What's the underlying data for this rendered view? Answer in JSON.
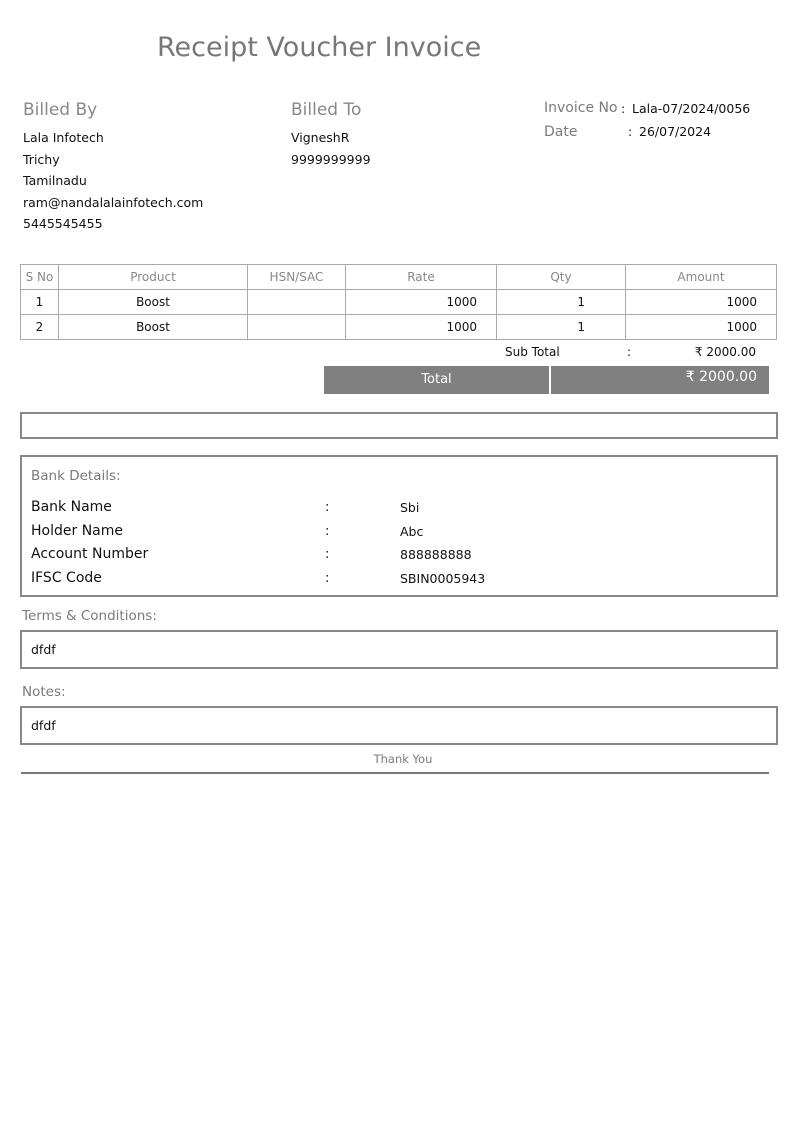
{
  "title": "Receipt Voucher Invoice",
  "billed_by": {
    "heading": "Billed By",
    "lines": [
      "Lala Infotech",
      "Trichy",
      "Tamilnadu",
      "ram@nandalalainfotech.com",
      "5445545455"
    ]
  },
  "billed_to": {
    "heading": "Billed To",
    "lines": [
      "VigneshR",
      "9999999999"
    ]
  },
  "invoice": {
    "no_label": "Invoice No",
    "no_value": "Lala-07/2024/0056",
    "date_label": "Date",
    "date_value": "26/07/2024",
    "sep": ":"
  },
  "table": {
    "headers": [
      "S No",
      "Product",
      "HSN/SAC",
      "Rate",
      "Qty",
      "Amount"
    ],
    "rows": [
      [
        "1",
        "Boost",
        "",
        "1000",
        "1",
        "1000"
      ],
      [
        "2",
        "Boost",
        "",
        "1000",
        "1",
        "1000"
      ]
    ]
  },
  "subtotal": {
    "label": "Sub Total",
    "sep": ":",
    "value": "₹ 2000.00"
  },
  "total": {
    "label": "Total",
    "value": "₹ 2000.00"
  },
  "bank": {
    "heading": "Bank Details:",
    "rows": [
      {
        "label": "Bank Name",
        "value": "Sbi"
      },
      {
        "label": "Holder Name",
        "value": "Abc"
      },
      {
        "label": "Account Number",
        "value": "888888888"
      },
      {
        "label": "IFSC Code",
        "value": "SBIN0005943"
      }
    ]
  },
  "terms": {
    "heading": "Terms & Conditions:",
    "text": "dfdf"
  },
  "notes": {
    "heading": "Notes:",
    "text": "dfdf"
  },
  "footer": "Thank You"
}
